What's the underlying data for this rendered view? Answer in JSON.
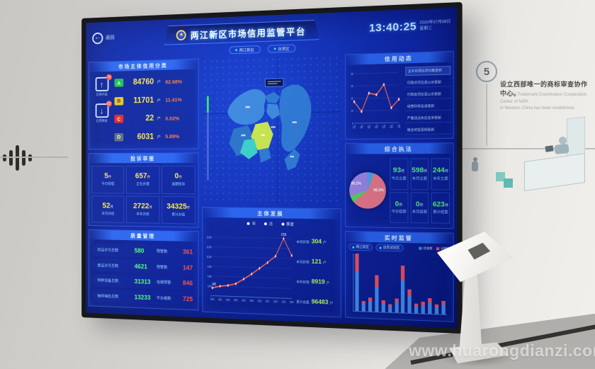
{
  "theme": {
    "accent": "#2f6af0",
    "green": "#52ff7a",
    "yellow": "#ffe84a",
    "red": "#ff4d40",
    "orange": "#ff7a3a",
    "cyan": "#63d0ff",
    "grade_a": "#17c04a",
    "grade_b": "#e8c61e",
    "grade_c": "#e82222",
    "grade_d": "#5a6a7a",
    "region_blue": "#3c8ae2",
    "region_blue2": "#2d7bd8",
    "region_yellow": "#cbe94e",
    "region_cyan": "#3bd3cb",
    "bar_blue": "#3f8df0",
    "bar_red": "#f05060",
    "line_red": "#ff6a5a"
  },
  "wall": {
    "milestone_number": "5",
    "milestone_title": "设立西部唯一的商标审查协作中心。",
    "milestone_en_line1": "The only Trademark Examination Cooperation Center of NIPA",
    "milestone_en_line2": "in Western China has been established.",
    "watermark": "www.huarongdianzi.com"
  },
  "screen": {
    "back_label": "返回",
    "title": "两江新区市场信用监管平台",
    "emblem_glyph": "★",
    "region_tabs": [
      {
        "label": "两江新区"
      },
      {
        "label": "自贸区"
      }
    ],
    "clock": {
      "time": "13:40:25",
      "date": "2020年07月08日",
      "weekday": "星期三"
    },
    "credit_class": {
      "title": "市场主体信用分类",
      "upgrade": {
        "label": "信用升级",
        "badge": "78",
        "arrow": "↑"
      },
      "downgrade": {
        "label": "信用降级",
        "badge": "63",
        "arrow": "↓"
      },
      "rows": [
        {
          "grade": "A",
          "count": "84760",
          "unit": "户",
          "pct": "82.68%"
        },
        {
          "grade": "B",
          "count": "11701",
          "unit": "户",
          "pct": "11.41%"
        },
        {
          "grade": "C",
          "count": "22",
          "unit": "户",
          "pct": "0.02%"
        },
        {
          "grade": "D",
          "count": "6031",
          "unit": "户",
          "pct": "5.89%"
        }
      ]
    },
    "complaints": {
      "title": "投诉举报",
      "cells": [
        {
          "value": "5",
          "unit": "件",
          "label": "今日受理"
        },
        {
          "value": "657",
          "unit": "件",
          "label": "正在办理"
        },
        {
          "value": "0",
          "unit": "件",
          "label": "逾期投诉"
        },
        {
          "value": "52",
          "unit": "件",
          "label": "本月办结"
        },
        {
          "value": "2722",
          "unit": "件",
          "label": "本年办结"
        },
        {
          "value": "34325",
          "unit": "件",
          "label": "累计办结"
        }
      ]
    },
    "quality": {
      "title": "质量管理",
      "rows": [
        {
          "left_label": "药品许可总数:",
          "left_value": "580",
          "right_label": "预警数:",
          "right_value": "361"
        },
        {
          "left_label": "食品许可总数:",
          "left_value": "4621",
          "right_label": "预警数:",
          "right_value": "147"
        },
        {
          "left_label": "特种设备总数:",
          "left_value": "31313",
          "right_label": "电梯预警:",
          "right_value": "846"
        },
        {
          "left_label": "抽样抽检总数:",
          "left_value": "13233",
          "right_label": "不合格数:",
          "right_value": "725"
        }
      ]
    },
    "development": {
      "title": "主体发展",
      "legend": [
        "年",
        "月",
        "季度"
      ],
      "stats": [
        {
          "label": "本周新增:",
          "value": "304",
          "unit": "户"
        },
        {
          "label": "本月新增:",
          "value": "121",
          "unit": "户"
        },
        {
          "label": "本年新增:",
          "value": "8919",
          "unit": "户"
        },
        {
          "label": "累计总量:",
          "value": "96483",
          "unit": "户"
        }
      ],
      "chart": {
        "type": "line",
        "x": [
          "2010",
          "2011",
          "2012",
          "2013",
          "2014",
          "2015",
          "2016",
          "2017",
          "2018",
          "2019",
          "2020"
        ],
        "values": [
          2408,
          3000,
          3300,
          3900,
          5400,
          7000,
          8800,
          10600,
          12600,
          17936,
          12900
        ],
        "ymax": 18000,
        "yticks": [
          "0",
          "3,000",
          "6,000",
          "9,000",
          "12,000",
          "15,000",
          "18,000"
        ],
        "peak_label": "17936",
        "start_label": "2408"
      }
    },
    "credit_news": {
      "title": "信用动态",
      "chart": {
        "type": "line",
        "x": [
          "1月",
          "2月",
          "3月",
          "4月",
          "5月",
          "6月",
          "7月"
        ],
        "values": [
          26,
          14,
          36,
          34,
          46,
          18,
          28
        ],
        "ymax": 60,
        "yticks": [
          "0",
          "15",
          "30",
          "45",
          "60"
        ]
      },
      "items": [
        "企业信用信息归集更新",
        "行政许可信息公示更新",
        "行政处罚信息公示更新",
        "经营异常名录更新",
        "严重违法失信名单更新",
        "联合奖惩案例更新"
      ]
    },
    "enforcement": {
      "title": "综合执法",
      "pie": {
        "type": "pie",
        "slices": [
          {
            "pct": 5.6,
            "color": "#4aa6ec"
          },
          {
            "pct": 58.3,
            "color": "#e8788a"
          },
          {
            "pct": 6.0,
            "color": "#5ad25e"
          },
          {
            "pct": 30.1,
            "color": "#9a86e8"
          }
        ],
        "label_main": "58.3%",
        "label_second": "30.1%"
      },
      "cells": [
        {
          "value": "93",
          "unit": "件",
          "label": "今日立案"
        },
        {
          "value": "598",
          "unit": "件",
          "label": "本月立案"
        },
        {
          "value": "244",
          "unit": "件",
          "label": "本年立案"
        },
        {
          "value": "0",
          "unit": "件",
          "label": "今日结案"
        },
        {
          "value": "0",
          "unit": "件",
          "label": "本月结案"
        },
        {
          "value": "623",
          "unit": "件",
          "label": "累计结案"
        }
      ]
    },
    "monitor": {
      "title": "实时监管",
      "tabs": [
        {
          "label": "两江新区"
        },
        {
          "label": "自贸试验区"
        }
      ],
      "legend": [
        {
          "label": "检查数"
        },
        {
          "label": "问题数"
        }
      ],
      "chart": {
        "type": "stacked_bar",
        "checks": [
          88,
          16,
          22,
          55,
          18,
          13,
          22,
          70,
          36,
          14,
          18,
          24,
          15,
          20
        ],
        "issues": [
          38,
          6,
          8,
          25,
          7,
          5,
          9,
          32,
          15,
          6,
          7,
          10,
          6,
          8
        ]
      }
    }
  }
}
